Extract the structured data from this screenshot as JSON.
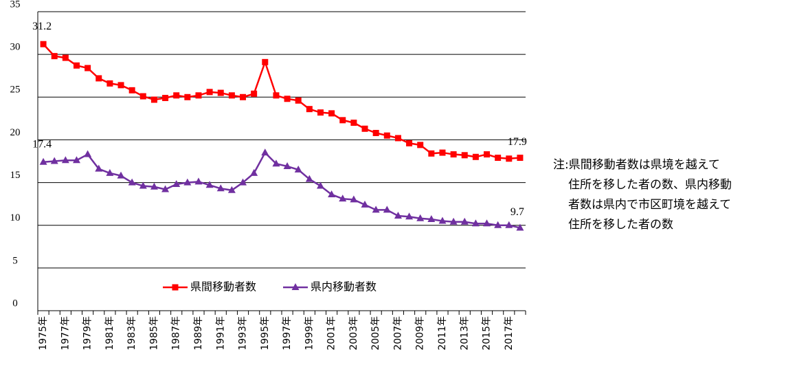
{
  "chart_data": {
    "type": "line",
    "categories": [
      "1975年",
      null,
      "1977年",
      null,
      "1979年",
      null,
      "1981年",
      null,
      "1983年",
      null,
      "1985年",
      null,
      "1987年",
      null,
      "1989年",
      null,
      "1991年",
      null,
      "1993年",
      null,
      "1995年",
      null,
      "1997年",
      null,
      "1999年",
      null,
      "2001年",
      null,
      "2003年",
      null,
      "2005年",
      null,
      "2007年",
      null,
      "2009年",
      null,
      "2011年",
      null,
      "2013年",
      null,
      "2015年",
      null,
      "2017年",
      null
    ],
    "series": [
      {
        "name": "県間移動者数",
        "color": "#ff0000",
        "marker": "square",
        "values": [
          31.2,
          29.8,
          29.6,
          28.7,
          28.4,
          27.2,
          26.6,
          26.4,
          25.8,
          25.1,
          24.7,
          24.9,
          25.2,
          25.0,
          25.2,
          25.6,
          25.5,
          25.2,
          25.0,
          25.4,
          29.1,
          25.2,
          24.8,
          24.6,
          23.6,
          23.2,
          23.1,
          22.3,
          22.0,
          21.3,
          20.8,
          20.5,
          20.2,
          19.6,
          19.4,
          18.4,
          18.5,
          18.3,
          18.2,
          18.0,
          18.3,
          17.9,
          17.8,
          17.9
        ]
      },
      {
        "name": "県内移動者数",
        "color": "#7030a0",
        "marker": "triangle",
        "values": [
          17.4,
          17.5,
          17.6,
          17.6,
          18.3,
          16.6,
          16.1,
          15.8,
          15.0,
          14.6,
          14.5,
          14.2,
          14.8,
          15.0,
          15.1,
          14.7,
          14.3,
          14.1,
          15.0,
          16.1,
          18.5,
          17.2,
          16.9,
          16.5,
          15.4,
          14.6,
          13.6,
          13.1,
          13.0,
          12.4,
          11.8,
          11.8,
          11.1,
          11.0,
          10.8,
          10.7,
          10.5,
          10.4,
          10.4,
          10.2,
          10.2,
          10.0,
          10.0,
          9.7
        ]
      }
    ],
    "ylim": [
      0,
      35
    ],
    "yticks": [
      0,
      5,
      10,
      15,
      20,
      25,
      30,
      35
    ],
    "grid": true,
    "note": [
      "注:県間移動者数は県境を越えて",
      "住所を移した者の数、県内移動",
      "者数は県内で市区町境を越えて",
      "住所を移した者の数"
    ]
  }
}
